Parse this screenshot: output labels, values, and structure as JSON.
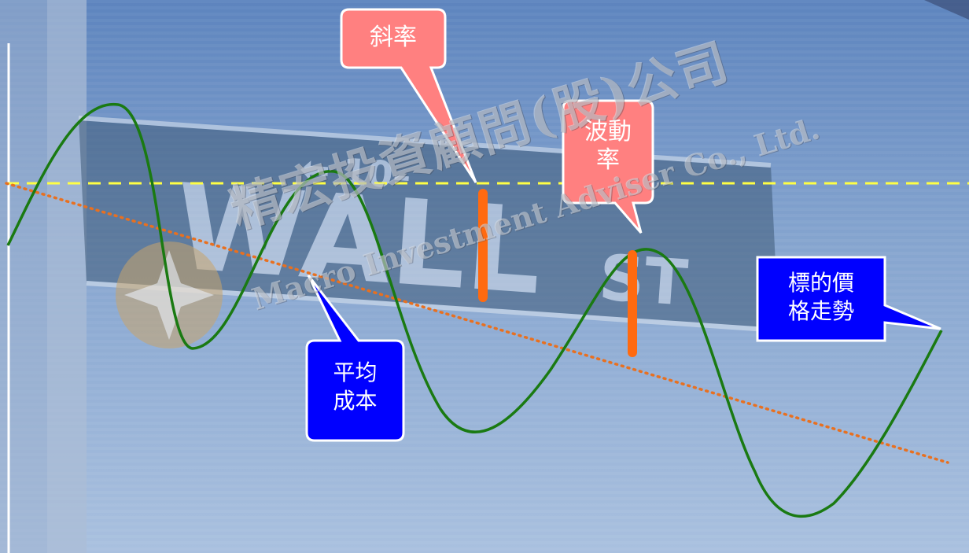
{
  "callouts": {
    "slope": "斜率",
    "volatility": "波動\n率",
    "avg_cost": "平均\n成本",
    "price_trend": "標的價\n格走勢"
  },
  "watermark": {
    "company_cn": "精宏投資顧問(股)公司",
    "company_en": "Macro Investment Adviser Co., Ltd."
  },
  "colors": {
    "price_line": "#1a7a12",
    "avg_cost_line": "#e87020",
    "horizontal_line": "#ffff44",
    "volatility_bar": "#ff6a10",
    "pink_callout": "#ff8080",
    "blue_callout": "#0000ff"
  }
}
